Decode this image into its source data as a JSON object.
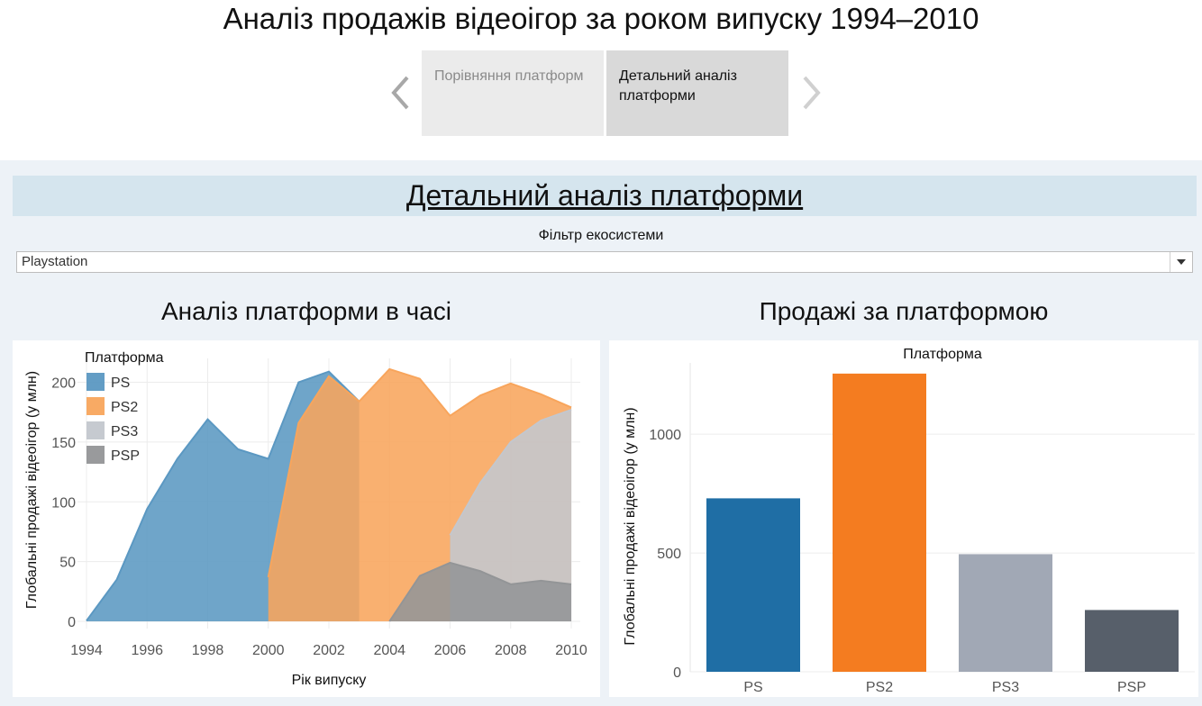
{
  "header": {
    "title": "Аналіз продажів відеоігор за роком випуску 1994–2010",
    "prev_icon": "chevron-left-icon",
    "next_icon": "chevron-right-icon",
    "tabs": [
      {
        "label": "Порівняння платформ",
        "active": false
      },
      {
        "label": "Детальний аналіз платформи",
        "active": true
      }
    ]
  },
  "dashboard": {
    "section_title": "Детальний аналіз платформи",
    "filter_label": "Фільтр екосистеми",
    "filter_value": "Playstation",
    "filter_icon": "dropdown-arrow-icon"
  },
  "chart_data": [
    {
      "type": "area",
      "title": "Аналіз платформи в часі",
      "xlabel": "Рік випуску",
      "ylabel": "Глобальні продажі відеоігор (у млн)",
      "legend_title": "Платформа",
      "legend_position": "top-left",
      "stacked": false,
      "grid": true,
      "xlim": [
        1994,
        2010
      ],
      "ylim": [
        0,
        220
      ],
      "x_ticks": [
        1994,
        1996,
        1998,
        2000,
        2002,
        2004,
        2006,
        2008,
        2010
      ],
      "y_ticks": [
        0,
        50,
        100,
        150,
        200
      ],
      "series": [
        {
          "name": "PS",
          "color": "#5b98c2",
          "points": [
            [
              1994,
              0.5
            ],
            [
              1995,
              35
            ],
            [
              1996,
              94
            ],
            [
              1997,
              136
            ],
            [
              1998,
              169
            ],
            [
              1999,
              144
            ],
            [
              2000,
              136
            ],
            [
              2001,
              200
            ],
            [
              2002,
              209
            ],
            [
              2003,
              184
            ]
          ]
        },
        {
          "name": "PS2",
          "color": "#f8a55c",
          "points": [
            [
              2000,
              37
            ],
            [
              2001,
              166
            ],
            [
              2002,
              205
            ],
            [
              2003,
              184
            ],
            [
              2004,
              211
            ],
            [
              2005,
              203
            ],
            [
              2006,
              172
            ],
            [
              2007,
              189
            ],
            [
              2008,
              199
            ],
            [
              2009,
              190
            ],
            [
              2010,
              179
            ]
          ]
        },
        {
          "name": "PS3",
          "color": "#c3c7ce",
          "points": [
            [
              2006,
              72
            ],
            [
              2007,
              116
            ],
            [
              2008,
              150
            ],
            [
              2009,
              168
            ],
            [
              2010,
              177
            ]
          ]
        },
        {
          "name": "PSP",
          "color": "#939597",
          "points": [
            [
              2004,
              0
            ],
            [
              2005,
              38
            ],
            [
              2006,
              49
            ],
            [
              2007,
              42
            ],
            [
              2008,
              31
            ],
            [
              2009,
              34
            ],
            [
              2010,
              31
            ]
          ]
        }
      ]
    },
    {
      "type": "bar",
      "title": "Продажі за платформою",
      "xlabel": "Платформа",
      "ylabel": "Глобальні продажі відеоігор (у млн)",
      "categories": [
        "PS",
        "PS2",
        "PS3",
        "PSP"
      ],
      "values": [
        730,
        1255,
        495,
        260
      ],
      "colors": [
        "#1f6ea5",
        "#f47c20",
        "#a1a8b5",
        "#575f6a"
      ],
      "ylim": [
        0,
        1300
      ],
      "y_ticks": [
        0,
        500,
        1000
      ],
      "grid": true
    }
  ]
}
